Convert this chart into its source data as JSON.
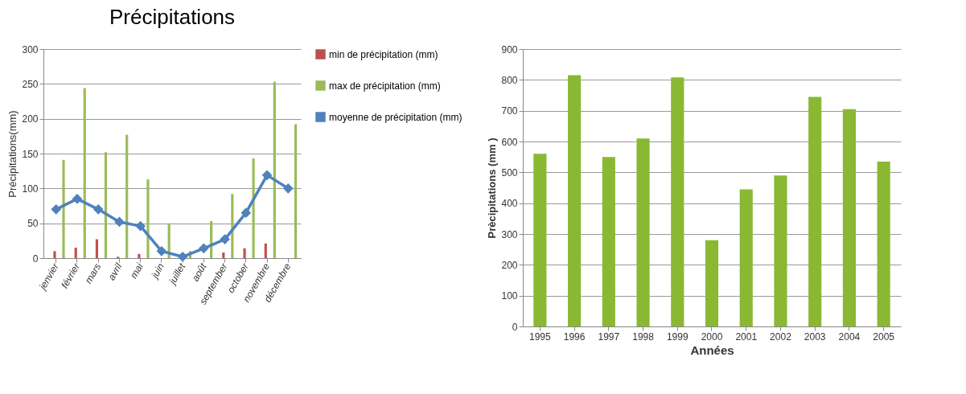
{
  "chart_data": [
    {
      "type": "bar",
      "title": "Précipitations",
      "ylabel": "Précipitations(mm)",
      "categories": [
        "jenvier",
        "février",
        "mars",
        "avril",
        "mai",
        "juin",
        "juillet",
        "août",
        "september",
        "october",
        "novembre",
        "décembre"
      ],
      "ylim": [
        0,
        300
      ],
      "yticks": [
        0,
        50,
        100,
        150,
        200,
        250,
        300
      ],
      "grid": "y",
      "legend": "right",
      "series": [
        {
          "name": "min de précipitation (mm)",
          "color": "#c0504d",
          "values": [
            10,
            15,
            27,
            2,
            6,
            0,
            0,
            0,
            8,
            14,
            21,
            0
          ]
        },
        {
          "name": "max de précipitation (mm)",
          "color": "#9bbb59",
          "values": [
            141,
            244,
            152,
            177,
            113,
            50,
            10,
            53,
            92,
            143,
            253,
            192
          ]
        },
        {
          "name": "moyenne de précipitation (mm)",
          "type": "line",
          "color": "#4f81bd",
          "marker": "diamond",
          "values": [
            70,
            85,
            70,
            52,
            46,
            10,
            2,
            14,
            27,
            65,
            119,
            100
          ]
        }
      ]
    },
    {
      "type": "bar",
      "xlabel": "Années",
      "ylabel": "Prècipitations (mm )",
      "categories": [
        "1995",
        "1996",
        "1997",
        "1998",
        "1999",
        "2000",
        "2001",
        "2002",
        "2003",
        "2004",
        "2005"
      ],
      "ylim": [
        0,
        900
      ],
      "yticks": [
        0,
        100,
        200,
        300,
        400,
        500,
        600,
        700,
        800,
        900
      ],
      "grid": "y",
      "series": [
        {
          "color": "#8ab833",
          "values": [
            560,
            815,
            550,
            610,
            808,
            280,
            445,
            490,
            745,
            705,
            535
          ]
        }
      ]
    }
  ]
}
